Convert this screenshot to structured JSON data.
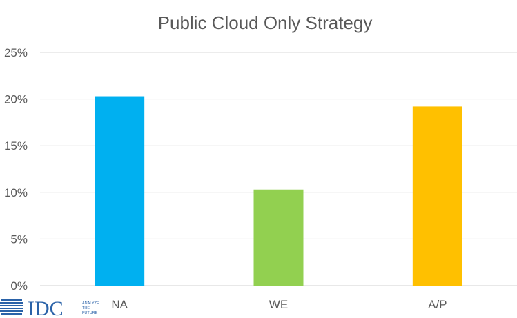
{
  "chart_data": {
    "type": "bar",
    "title": "Public Cloud Only Strategy",
    "categories": [
      "NA",
      "WE",
      "A/P"
    ],
    "values": [
      20.3,
      10.3,
      19.2
    ],
    "colors": [
      "#00b0f0",
      "#92d050",
      "#ffc000"
    ],
    "ylim": [
      0,
      25
    ],
    "yticks": [
      "0%",
      "5%",
      "10%",
      "15%",
      "20%",
      "25%"
    ],
    "ytick_values": [
      0,
      5,
      10,
      15,
      20,
      25
    ],
    "grid": true,
    "xlabel": "",
    "ylabel": ""
  },
  "logo": {
    "name": "IDC",
    "tagline": [
      "ANALYZE",
      "THE",
      "FUTURE"
    ],
    "color": "#2a62a8"
  }
}
